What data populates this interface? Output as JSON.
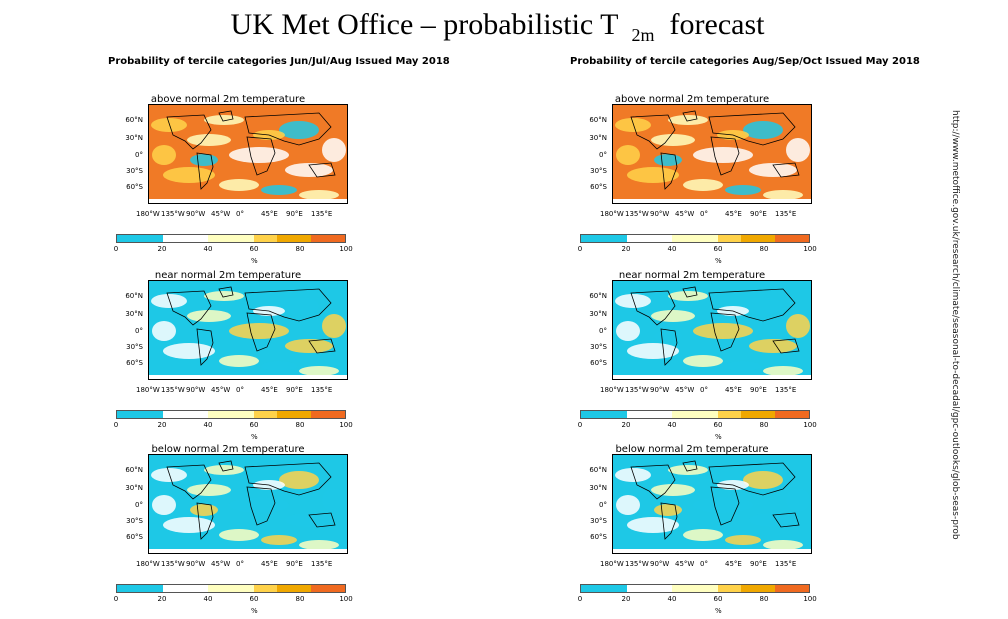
{
  "header": {
    "title_pre": "UK Met Office –  probabilistic T",
    "title_sub": "2m",
    "title_post": "forecast"
  },
  "columns": [
    {
      "title": "Probability of tercile categories Jun/Jul/Aug Issued May 2018",
      "panels": [
        {
          "title": "above normal 2m temperature",
          "variant": "above"
        },
        {
          "title": "near normal 2m temperature",
          "variant": "near"
        },
        {
          "title": "below normal 2m temperature",
          "variant": "below"
        }
      ]
    },
    {
      "title": "Probability of tercile categories Aug/Sep/Oct Issued May 2018",
      "panels": [
        {
          "title": "above normal 2m temperature",
          "variant": "above"
        },
        {
          "title": "near normal 2m temperature",
          "variant": "near"
        },
        {
          "title": "below normal 2m temperature",
          "variant": "below"
        }
      ]
    }
  ],
  "lat_labels": [
    "60°N",
    "30°N",
    "0°",
    "30°S",
    "60°S"
  ],
  "lon_labels": [
    "180°W",
    "135°W",
    "90°W",
    "45°W",
    "0°",
    "45°E",
    "90°E",
    "135°E"
  ],
  "colorbar": {
    "ticks": [
      "0",
      "20",
      "40",
      "60",
      "80",
      "100"
    ],
    "unit": "%",
    "colors": [
      "#1ec8e6",
      "#ffffff",
      "#ffffc0",
      "#ffd24a",
      "#f0a800",
      "#f06a20"
    ]
  },
  "side_url": "http://www.metoffice.gov.uk/research/climate/seasonal-to-decadal/gpc-outlooks/glob-seas-prob"
}
